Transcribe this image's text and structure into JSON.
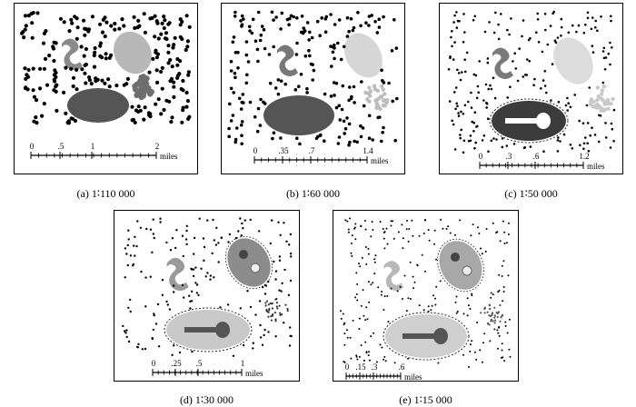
{
  "panels": [
    {
      "id": "a",
      "caption": "(a) 1∶110 000",
      "scale": {
        "ticks": [
          "0",
          ".5",
          "1",
          "2"
        ],
        "unit": "miles"
      },
      "colors": {
        "dots": "#000000",
        "green": "#8a8a8a",
        "park": "#b8b8b8",
        "lake": "#555555",
        "pond": "#6e6e6e"
      }
    },
    {
      "id": "b",
      "caption": "(b) 1∶60 000",
      "scale": {
        "ticks": [
          "0",
          ".35",
          ".7",
          "1.4"
        ],
        "unit": "miles"
      },
      "colors": {
        "dots": "#000000",
        "green": "#777777",
        "park": "#d6d6d6",
        "lake": "#555555",
        "pond": "#bdbdbd"
      }
    },
    {
      "id": "c",
      "caption": "(c) 1∶50 000",
      "scale": {
        "ticks": [
          "0",
          ".3",
          ".6",
          "1.2"
        ],
        "unit": "miles"
      },
      "colors": {
        "dots": "#000000",
        "green": "#7a7a7a",
        "park": "#dcdcdc",
        "lake": "#3c3c3c",
        "pond": "#c8c8c8"
      }
    },
    {
      "id": "d",
      "caption": "(d) 1∶30 000",
      "scale": {
        "ticks": [
          "0",
          ".25",
          ".5",
          "1"
        ],
        "unit": "miles"
      },
      "colors": {
        "dots": "#000000",
        "green": "#9a9a9a",
        "park": "#8c8c8c",
        "lake": "#c9c9c9",
        "pond": "#333333"
      }
    },
    {
      "id": "e",
      "caption": "(e) 1∶15 000",
      "scale": {
        "ticks": [
          "0",
          ".15",
          ".3",
          ".6"
        ],
        "unit": "miles"
      },
      "colors": {
        "dots": "#000000",
        "green": "#b8b8b8",
        "park": "#a8a8a8",
        "lake": "#cfcfcf",
        "pond": "#555555"
      }
    }
  ]
}
